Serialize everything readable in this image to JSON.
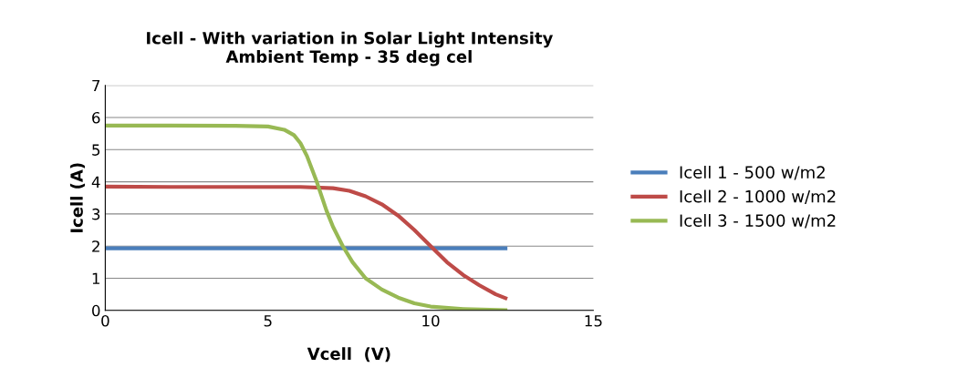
{
  "chart_data": {
    "type": "line",
    "title": "Icell - With variation in Solar Light Intensity\nAmbient Temp - 35 deg cel",
    "xlabel": "Vcell  (V)",
    "ylabel": "Icell (A)",
    "xlim": [
      0,
      15
    ],
    "xticks": [
      0,
      5,
      10,
      15
    ],
    "ylim": [
      0,
      7
    ],
    "yticks": [
      0,
      1,
      2,
      3,
      4,
      5,
      6,
      7
    ],
    "grid": "y",
    "legend": "right",
    "marker": "none",
    "line_style": "solid",
    "series": [
      {
        "name": "Icell 1 - 500 w/m2",
        "color": "#4a7ebb",
        "x": [
          0,
          3,
          6,
          9,
          12.3
        ],
        "values": [
          1.93,
          1.93,
          1.93,
          1.93,
          1.93
        ]
      },
      {
        "name": "Icell 2 - 1000 w/m2",
        "color": "#be4b48",
        "x": [
          0,
          2,
          4,
          6,
          7,
          7.5,
          8,
          8.5,
          9,
          9.5,
          10,
          10.5,
          11,
          11.5,
          12,
          12.3
        ],
        "values": [
          3.85,
          3.84,
          3.84,
          3.84,
          3.8,
          3.72,
          3.55,
          3.3,
          2.95,
          2.5,
          2.0,
          1.5,
          1.1,
          0.78,
          0.5,
          0.38
        ]
      },
      {
        "name": "Icell 3 - 1500 w/m2",
        "color": "#98b954",
        "x": [
          0,
          2,
          4,
          5,
          5.5,
          5.8,
          6,
          6.2,
          6.5,
          6.8,
          7,
          7.3,
          7.6,
          8,
          8.5,
          9,
          9.5,
          10,
          11,
          12.3
        ],
        "values": [
          5.75,
          5.75,
          5.74,
          5.72,
          5.62,
          5.45,
          5.2,
          4.8,
          4.0,
          3.1,
          2.6,
          2.0,
          1.5,
          1.0,
          0.65,
          0.4,
          0.22,
          0.12,
          0.04,
          0.01
        ]
      }
    ]
  }
}
